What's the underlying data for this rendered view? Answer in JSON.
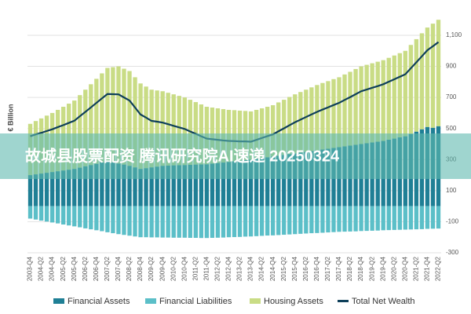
{
  "chart_data": {
    "type": "stacked-bar-line",
    "y_axis_label": "€ Billion",
    "watermark": "故城县股票配资 腾讯研究院AI速递 20250324",
    "categories": [
      "2003-Q4",
      null,
      "2004-Q2",
      null,
      "2004-Q4",
      null,
      "2005-Q2",
      null,
      "2005-Q4",
      null,
      "2006-Q2",
      null,
      "2006-Q4",
      null,
      "2007-Q2",
      null,
      "2007-Q4",
      null,
      "2008-Q2",
      null,
      "2008-Q4",
      null,
      "2009-Q2",
      null,
      "2009-Q4",
      null,
      "2010-Q2",
      null,
      "2010-Q4",
      null,
      "2011-Q2",
      null,
      "2011-Q4",
      null,
      "2012-Q2",
      null,
      "2012-Q4",
      null,
      "2013-Q2",
      null,
      "2013-Q4",
      null,
      "2014-Q2",
      null,
      "2014-Q4",
      null,
      "2015-Q2",
      null,
      "2015-Q4",
      null,
      "2016-Q2",
      null,
      "2016-Q4",
      null,
      "2017-Q2",
      null,
      "2017-Q4",
      null,
      "2018-Q2",
      null,
      "2018-Q4",
      null,
      "2019-Q2",
      null,
      "2019-Q4",
      null,
      "2020-Q2",
      null,
      "2020-Q4",
      null,
      "2021-Q2",
      null,
      "2021-Q4",
      null,
      "2022-Q2"
    ],
    "series": [
      {
        "name": "Financial Assets",
        "color": "#1f7f95",
        "kind": "bar",
        "stack": "up",
        "values": [
          200,
          205,
          210,
          215,
          220,
          225,
          230,
          235,
          240,
          248,
          257,
          265,
          273,
          282,
          290,
          283,
          275,
          268,
          260,
          250,
          240,
          245,
          250,
          255,
          260,
          261,
          263,
          264,
          265,
          266,
          268,
          269,
          270,
          274,
          278,
          281,
          285,
          289,
          293,
          296,
          300,
          305,
          310,
          315,
          320,
          325,
          330,
          335,
          340,
          345,
          350,
          355,
          360,
          365,
          370,
          375,
          380,
          385,
          390,
          395,
          400,
          405,
          410,
          415,
          420,
          428,
          435,
          443,
          450,
          465,
          480,
          495,
          510,
          505,
          515
        ]
      },
      {
        "name": "Financial Liabilities",
        "color": "#5bbfc8",
        "kind": "bar",
        "stack": "down",
        "values": [
          -80,
          -86,
          -93,
          -99,
          -105,
          -111,
          -118,
          -124,
          -130,
          -136,
          -143,
          -149,
          -155,
          -161,
          -168,
          -174,
          -180,
          -185,
          -190,
          -195,
          -200,
          -200,
          -201,
          -201,
          -202,
          -202,
          -203,
          -203,
          -203,
          -204,
          -204,
          -205,
          -205,
          -204,
          -203,
          -202,
          -200,
          -199,
          -198,
          -196,
          -195,
          -193,
          -191,
          -189,
          -188,
          -186,
          -184,
          -182,
          -180,
          -178,
          -176,
          -174,
          -173,
          -171,
          -169,
          -167,
          -165,
          -164,
          -163,
          -162,
          -160,
          -159,
          -158,
          -157,
          -155,
          -154,
          -153,
          -152,
          -151,
          -150,
          -149,
          -148,
          -146,
          -145,
          -144
        ]
      },
      {
        "name": "Housing Assets",
        "color": "#c9dc85",
        "kind": "bar",
        "stack": "up",
        "values": [
          330,
          343,
          355,
          368,
          380,
          395,
          410,
          425,
          440,
          467,
          493,
          520,
          547,
          573,
          600,
          612,
          625,
          617,
          610,
          580,
          550,
          525,
          500,
          490,
          480,
          469,
          457,
          446,
          435,
          419,
          402,
          386,
          370,
          361,
          352,
          344,
          335,
          329,
          322,
          317,
          310,
          315,
          320,
          325,
          330,
          343,
          355,
          368,
          380,
          390,
          400,
          410,
          420,
          428,
          435,
          443,
          450,
          463,
          475,
          488,
          500,
          505,
          510,
          515,
          520,
          527,
          535,
          542,
          550,
          573,
          595,
          618,
          640,
          670,
          685
        ]
      },
      {
        "name": "Total Net Wealth",
        "color": "#0e3f5a",
        "kind": "line",
        "values": [
          450,
          462,
          472,
          484,
          495,
          509,
          522,
          536,
          550,
          579,
          607,
          636,
          665,
          694,
          722,
          721,
          720,
          700,
          680,
          635,
          590,
          570,
          549,
          544,
          538,
          528,
          517,
          507,
          497,
          481,
          466,
          450,
          435,
          431,
          427,
          423,
          420,
          419,
          417,
          417,
          415,
          427,
          439,
          451,
          462,
          482,
          501,
          521,
          540,
          557,
          574,
          591,
          607,
          622,
          636,
          651,
          665,
          684,
          702,
          721,
          740,
          751,
          762,
          773,
          785,
          801,
          817,
          833,
          849,
          888,
          926,
          965,
          1004,
          1030,
          1056
        ]
      }
    ],
    "ylim": [
      -300,
      1250
    ],
    "yticks": [
      -300,
      -100,
      100,
      300,
      500,
      700,
      900,
      {
        "value": 1100,
        "label": "1,100"
      }
    ],
    "grid": true
  }
}
